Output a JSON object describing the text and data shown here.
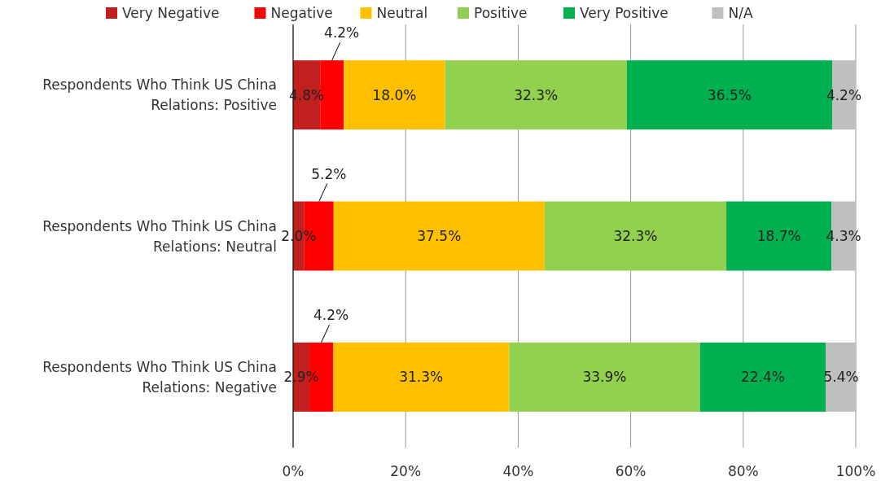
{
  "chart_data": {
    "type": "bar",
    "orientation": "horizontal",
    "stacked": true,
    "categories": [
      "Respondents Who Think US China Relations: Positive",
      "Respondents Who Think US China Relations: Neutral",
      "Respondents Who Think US China Relations: Negative"
    ],
    "series": [
      {
        "name": "Very Negative",
        "color": "#c0201e",
        "values": [
          4.8,
          2.0,
          2.9
        ],
        "value_labels": [
          "4.8%",
          "2.0%",
          "2.9%"
        ]
      },
      {
        "name": "Negative",
        "color": "#ff0000",
        "values": [
          4.2,
          5.2,
          4.2
        ],
        "value_labels": [
          "4.2%",
          "5.2%",
          "4.2%"
        ]
      },
      {
        "name": "Neutral",
        "color": "#ffc000",
        "values": [
          18.0,
          37.5,
          31.3
        ],
        "value_labels": [
          "18.0%",
          "37.5%",
          "31.3%"
        ]
      },
      {
        "name": "Positive",
        "color": "#92d050",
        "values": [
          32.3,
          32.3,
          33.9
        ],
        "value_labels": [
          "32.3%",
          "32.3%",
          "33.9%"
        ]
      },
      {
        "name": "Very Positive",
        "color": "#00b050",
        "values": [
          36.5,
          18.7,
          22.4
        ],
        "value_labels": [
          "36.5%",
          "18.7%",
          "22.4%"
        ]
      },
      {
        "name": "N/A",
        "color": "#bfbfbf",
        "values": [
          4.2,
          4.3,
          5.4
        ],
        "value_labels": [
          "4.2%",
          "4.3%",
          "5.4%"
        ]
      }
    ],
    "xlim": [
      0,
      100
    ],
    "xticks": [
      {
        "value": 0,
        "label": "0%"
      },
      {
        "value": 20,
        "label": "20%"
      },
      {
        "value": 40,
        "label": "40%"
      },
      {
        "value": 60,
        "label": "60%"
      },
      {
        "value": 80,
        "label": "80%"
      },
      {
        "value": 100,
        "label": "100%"
      }
    ],
    "grid": "x",
    "legend": "top"
  }
}
